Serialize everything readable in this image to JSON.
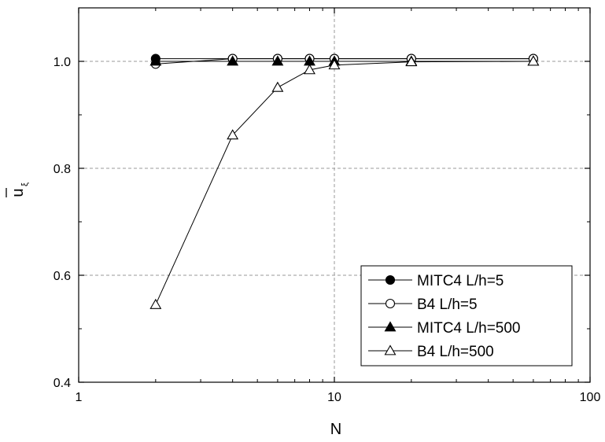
{
  "chart_data": {
    "type": "line",
    "title": "",
    "xlabel": "N",
    "ylabel": "u",
    "ylabel_subscript": "ξ",
    "xscale": "log",
    "xlim": [
      1,
      100
    ],
    "ylim": [
      0.4,
      1.1
    ],
    "xticks": [
      1,
      10,
      100
    ],
    "xtick_labels": [
      "1",
      "10",
      "100"
    ],
    "yticks": [
      0.4,
      0.6,
      0.8,
      1.0
    ],
    "ytick_labels": [
      "0.4",
      "0.6",
      "0.8",
      "1.0"
    ],
    "grid": true,
    "legend_position": "bottom-right",
    "series": [
      {
        "name": "MITC4 L/h=5",
        "marker": "circle",
        "filled": true,
        "x": [
          2,
          4,
          6,
          8,
          10,
          20,
          60
        ],
        "y": [
          1.005,
          1.005,
          1.005,
          1.005,
          1.005,
          1.005,
          1.005
        ]
      },
      {
        "name": "B4 L/h=5",
        "marker": "circle",
        "filled": false,
        "x": [
          2,
          4,
          6,
          8,
          10,
          20,
          60
        ],
        "y": [
          0.995,
          1.005,
          1.005,
          1.005,
          1.005,
          1.005,
          1.005
        ]
      },
      {
        "name": "MITC4 L/h=500",
        "marker": "triangle",
        "filled": true,
        "x": [
          2,
          4,
          6,
          8,
          10,
          20,
          60
        ],
        "y": [
          1.0,
          1.0,
          1.0,
          1.0,
          1.0,
          1.0,
          1.0
        ]
      },
      {
        "name": "B4 L/h=500",
        "marker": "triangle",
        "filled": false,
        "x": [
          2,
          4,
          6,
          8,
          10,
          20,
          60
        ],
        "y": [
          0.545,
          0.862,
          0.951,
          0.984,
          0.993,
          0.999,
          1.0
        ]
      }
    ]
  }
}
